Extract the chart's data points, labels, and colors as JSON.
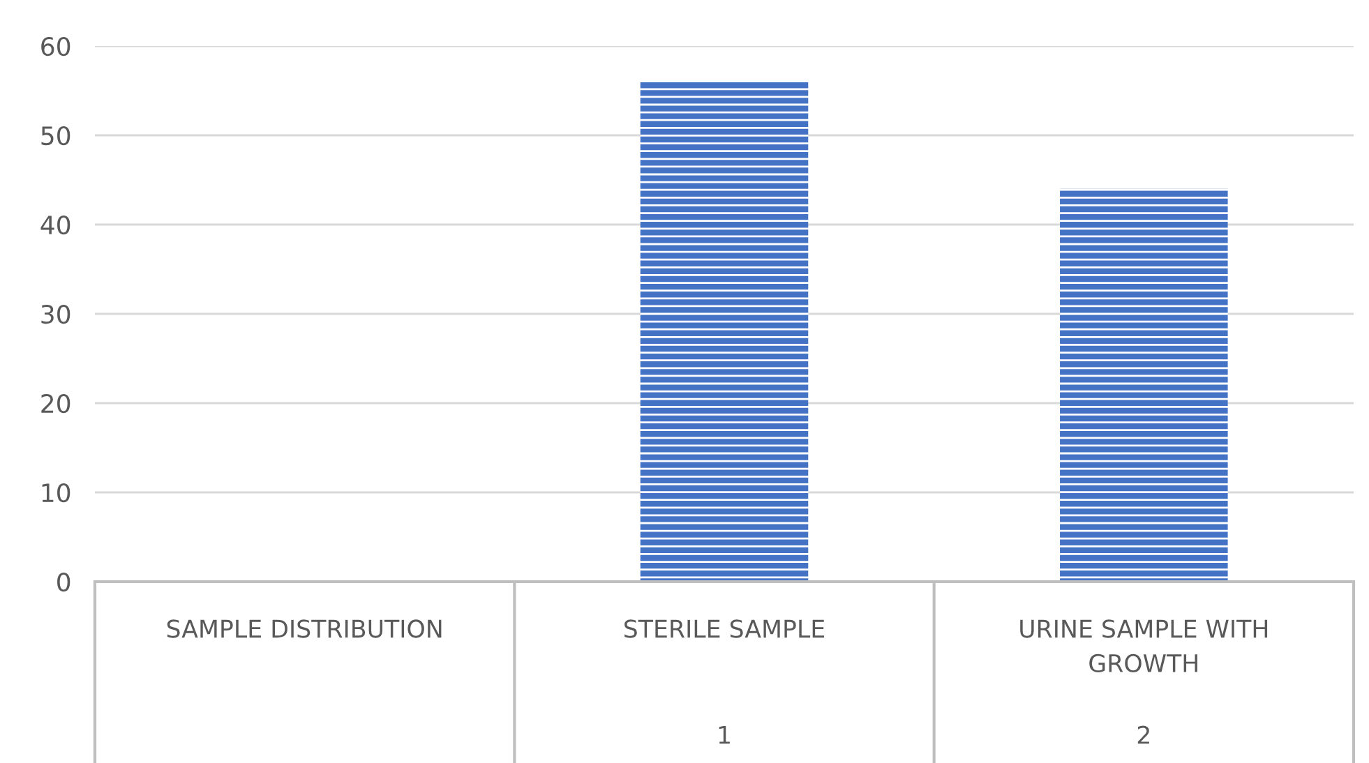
{
  "chart_data": {
    "type": "bar",
    "categories": [
      "SAMPLE DISTRIBUTION",
      "STERILE SAMPLE",
      "URINE SAMPLE WITH GROWTH"
    ],
    "values": [
      null,
      56,
      44
    ],
    "color": "#4472c4",
    "ylim": [
      0,
      60
    ],
    "yticks": [
      0,
      10,
      20,
      30,
      40,
      50,
      60
    ],
    "grid": "y",
    "legend": false,
    "annotations": [
      "1",
      "2"
    ]
  }
}
